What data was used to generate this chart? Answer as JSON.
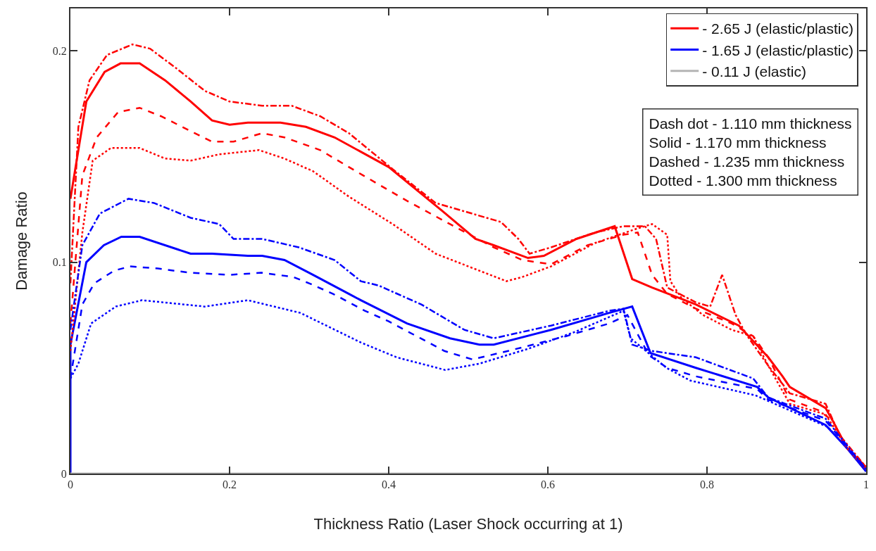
{
  "chart_data": {
    "type": "line",
    "xlabel": "Thickness Ratio (Laser Shock occurring at 1)",
    "ylabel": "Damage Ratio",
    "xlim": [
      0,
      1
    ],
    "ylim": [
      0,
      0.22
    ],
    "xticks": [
      0,
      0.2,
      0.4,
      0.6,
      0.8,
      1
    ],
    "yticks": [
      0,
      0.1,
      0.2
    ],
    "legend": "top right",
    "marker": "none",
    "annotations": [
      "Dash dot - 1.110 mm thickness",
      "Solid - 1.170 mm thickness",
      "Dashed - 1.235 mm thickness",
      "Dotted - 1.300 mm thickness"
    ],
    "series": [
      {
        "name": "- 2.65 J (elastic/plastic)",
        "color": "#ff0000",
        "line_style": "solid",
        "x": [
          0,
          0.02,
          0.043,
          0.063,
          0.087,
          0.119,
          0.151,
          0.178,
          0.2,
          0.223,
          0.264,
          0.296,
          0.332,
          0.4,
          0.468,
          0.509,
          0.532,
          0.575,
          0.595,
          0.636,
          0.684,
          0.706,
          0.731,
          0.786,
          0.84,
          0.877,
          0.895,
          0.904,
          0.949,
          0.958,
          0.976,
          1.0
        ],
        "values": [
          0.13,
          0.176,
          0.19,
          0.194,
          0.194,
          0.186,
          0.176,
          0.167,
          0.165,
          0.166,
          0.166,
          0.164,
          0.159,
          0.145,
          0.124,
          0.111,
          0.108,
          0.102,
          0.103,
          0.111,
          0.117,
          0.092,
          0.088,
          0.08,
          0.07,
          0.055,
          0.046,
          0.041,
          0.031,
          0.025,
          0.012,
          0.003
        ]
      },
      {
        "name": "- 1.65 J (elastic/plastic)",
        "color": "#0000ff",
        "line_style": "solid",
        "x": [
          0,
          0,
          0.02,
          0.042,
          0.064,
          0.087,
          0.151,
          0.178,
          0.223,
          0.241,
          0.269,
          0.305,
          0.35,
          0.365,
          0.423,
          0.477,
          0.514,
          0.532,
          0.604,
          0.677,
          0.706,
          0.729,
          0.786,
          0.863,
          0.877,
          0.949,
          0.976,
          1.0
        ],
        "values": [
          0,
          0.061,
          0.1,
          0.108,
          0.112,
          0.112,
          0.104,
          0.104,
          0.103,
          0.103,
          0.101,
          0.094,
          0.085,
          0.082,
          0.071,
          0.064,
          0.061,
          0.061,
          0.068,
          0.076,
          0.079,
          0.057,
          0.05,
          0.041,
          0.036,
          0.023,
          0.012,
          0.001
        ]
      },
      {
        "name": "- 0.11 J (elastic)",
        "color": "#b4b4b4",
        "line_style": "solid",
        "x": [
          0,
          1
        ],
        "values": [
          0,
          0
        ]
      },
      {
        "color": "#ff0000",
        "line_style": "dashdot",
        "x": [
          0,
          0.01,
          0.024,
          0.046,
          0.078,
          0.1,
          0.132,
          0.169,
          0.2,
          0.241,
          0.278,
          0.314,
          0.35,
          0.405,
          0.459,
          0.541,
          0.563,
          0.577,
          0.604,
          0.659,
          0.695,
          0.722,
          0.736,
          0.75,
          0.786,
          0.804,
          0.819,
          0.836,
          0.849,
          0.877,
          0.904,
          0.949,
          0.967,
          1.0
        ],
        "values": [
          0.09,
          0.164,
          0.186,
          0.198,
          0.203,
          0.201,
          0.192,
          0.181,
          0.176,
          0.174,
          0.174,
          0.169,
          0.161,
          0.144,
          0.128,
          0.119,
          0.111,
          0.104,
          0.107,
          0.114,
          0.117,
          0.117,
          0.111,
          0.088,
          0.081,
          0.079,
          0.094,
          0.075,
          0.066,
          0.051,
          0.038,
          0.033,
          0.018,
          0.003
        ]
      },
      {
        "color": "#ff0000",
        "line_style": "dashed",
        "x": [
          0,
          0.015,
          0.033,
          0.06,
          0.087,
          0.114,
          0.151,
          0.178,
          0.205,
          0.241,
          0.269,
          0.314,
          0.368,
          0.423,
          0.477,
          0.532,
          0.568,
          0.604,
          0.65,
          0.695,
          0.713,
          0.731,
          0.75,
          0.786,
          0.831,
          0.858,
          0.877,
          0.904,
          0.94,
          0.958,
          0.976,
          1.0
        ],
        "values": [
          0.071,
          0.141,
          0.159,
          0.171,
          0.173,
          0.169,
          0.162,
          0.157,
          0.157,
          0.161,
          0.159,
          0.153,
          0.141,
          0.129,
          0.118,
          0.107,
          0.101,
          0.099,
          0.108,
          0.113,
          0.114,
          0.094,
          0.085,
          0.078,
          0.071,
          0.065,
          0.055,
          0.035,
          0.03,
          0.025,
          0.012,
          0.002
        ]
      },
      {
        "color": "#ff0000",
        "line_style": "dotted",
        "x": [
          0,
          0.015,
          0.028,
          0.051,
          0.087,
          0.119,
          0.151,
          0.187,
          0.237,
          0.269,
          0.305,
          0.35,
          0.405,
          0.459,
          0.548,
          0.568,
          0.604,
          0.659,
          0.713,
          0.731,
          0.75,
          0.754,
          0.768,
          0.795,
          0.831,
          0.858,
          0.877,
          0.904,
          0.949,
          0.976,
          1.0
        ],
        "values": [
          0.058,
          0.114,
          0.148,
          0.154,
          0.154,
          0.149,
          0.148,
          0.151,
          0.153,
          0.149,
          0.143,
          0.131,
          0.118,
          0.104,
          0.091,
          0.093,
          0.098,
          0.109,
          0.116,
          0.118,
          0.113,
          0.091,
          0.083,
          0.075,
          0.068,
          0.065,
          0.051,
          0.033,
          0.028,
          0.012,
          0.002
        ]
      },
      {
        "color": "#0000ff",
        "line_style": "dashdot",
        "x": [
          0,
          0.015,
          0.037,
          0.073,
          0.105,
          0.151,
          0.187,
          0.205,
          0.241,
          0.287,
          0.332,
          0.365,
          0.387,
          0.441,
          0.495,
          0.532,
          0.604,
          0.677,
          0.695,
          0.706,
          0.731,
          0.786,
          0.858,
          0.877,
          0.949,
          1.0
        ],
        "values": [
          0.068,
          0.108,
          0.123,
          0.13,
          0.128,
          0.121,
          0.118,
          0.111,
          0.111,
          0.107,
          0.101,
          0.091,
          0.089,
          0.08,
          0.068,
          0.064,
          0.07,
          0.077,
          0.078,
          0.061,
          0.058,
          0.055,
          0.045,
          0.036,
          0.026,
          0.002
        ]
      },
      {
        "color": "#0000ff",
        "line_style": "dashed",
        "x": [
          0,
          0.015,
          0.03,
          0.055,
          0.075,
          0.11,
          0.15,
          0.2,
          0.24,
          0.28,
          0.3,
          0.33,
          0.37,
          0.4,
          0.44,
          0.47,
          0.505,
          0.55,
          0.623,
          0.677,
          0.7,
          0.727,
          0.75,
          0.786,
          0.863,
          0.877,
          0.949,
          1.0
        ],
        "values": [
          0.045,
          0.08,
          0.09,
          0.096,
          0.098,
          0.097,
          0.095,
          0.094,
          0.095,
          0.093,
          0.09,
          0.085,
          0.077,
          0.072,
          0.064,
          0.058,
          0.054,
          0.058,
          0.065,
          0.071,
          0.075,
          0.056,
          0.05,
          0.046,
          0.04,
          0.035,
          0.025,
          0.002
        ]
      },
      {
        "color": "#0000ff",
        "line_style": "dotted",
        "x": [
          0,
          0.01,
          0.026,
          0.057,
          0.09,
          0.169,
          0.223,
          0.289,
          0.365,
          0.41,
          0.471,
          0.514,
          0.575,
          0.634,
          0.689,
          0.695,
          0.704,
          0.749,
          0.779,
          0.861,
          0.952,
          1.0
        ],
        "values": [
          0.045,
          0.052,
          0.071,
          0.079,
          0.082,
          0.079,
          0.082,
          0.076,
          0.062,
          0.055,
          0.049,
          0.052,
          0.059,
          0.067,
          0.076,
          0.077,
          0.064,
          0.05,
          0.044,
          0.037,
          0.022,
          0.002
        ]
      }
    ]
  }
}
